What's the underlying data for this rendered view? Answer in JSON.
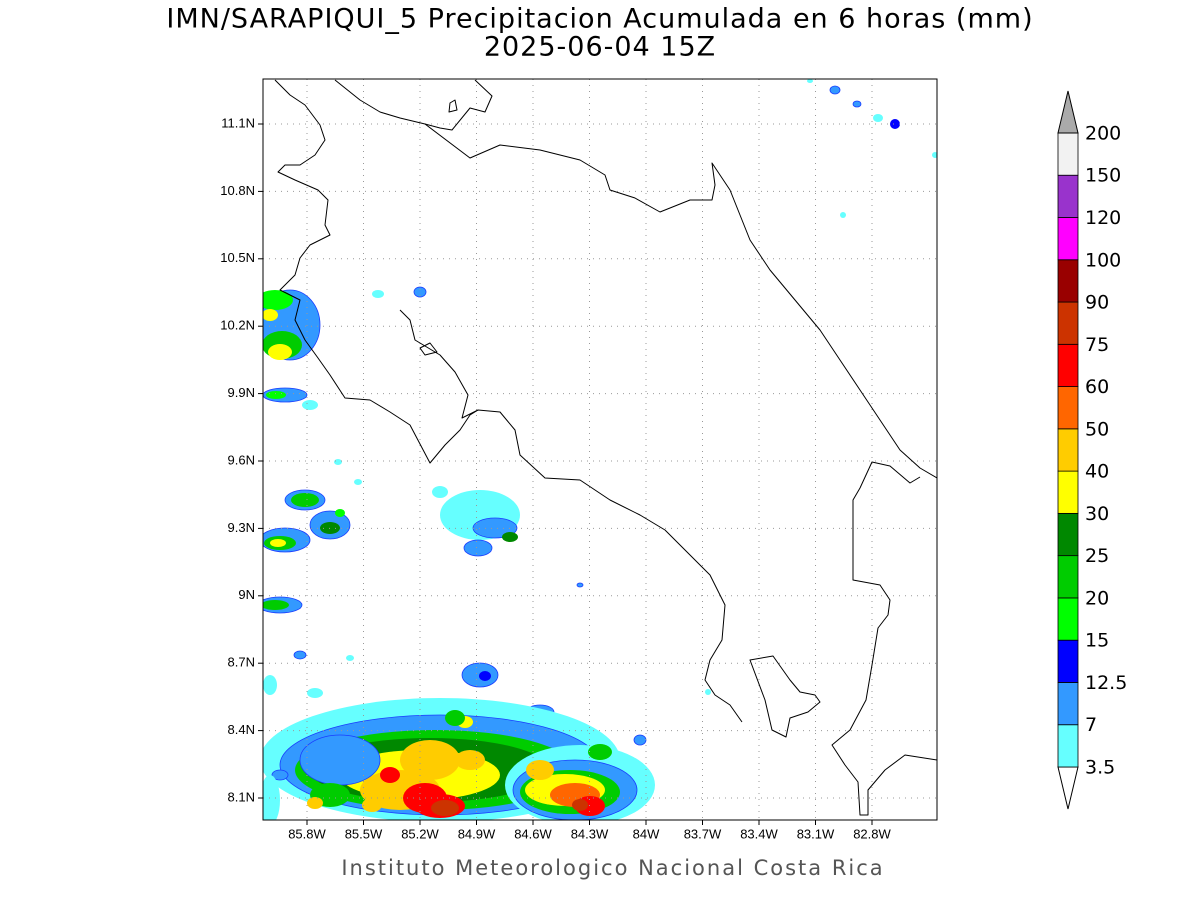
{
  "title": "IMN/SARAPIQUI_5 Precipitacion Acumulada en 6 horas (mm)",
  "subtitle": "2025-06-04 15Z",
  "map": {
    "lat_labels": [
      "11.1N",
      "10.8N",
      "10.5N",
      "10.2N",
      "9.9N",
      "9.6N",
      "9.3N",
      "9N",
      "8.7N",
      "8.4N",
      "8.1N"
    ],
    "lon_labels": [
      "85.8W",
      "85.5W",
      "85.2W",
      "84.9W",
      "84.6W",
      "84.3W",
      "84W",
      "83.7W",
      "83.4W",
      "83.1W",
      "82.8W"
    ]
  },
  "colorbar": {
    "levels": [
      3.5,
      7,
      12.5,
      15,
      20,
      25,
      30,
      40,
      50,
      60,
      75,
      90,
      100,
      120,
      150,
      200
    ],
    "colors": [
      "#66ffff",
      "#3399ff",
      "#0000ff",
      "#00ff00",
      "#00cc00",
      "#008800",
      "#ffff00",
      "#ffcc00",
      "#ff6600",
      "#ff0000",
      "#cc3300",
      "#990000",
      "#ff00ff",
      "#9933cc",
      "#f2f2f2"
    ],
    "over_color": "#aaaaaa"
  },
  "footer": "Instituto Meteorologico Nacional Costa Rica"
}
